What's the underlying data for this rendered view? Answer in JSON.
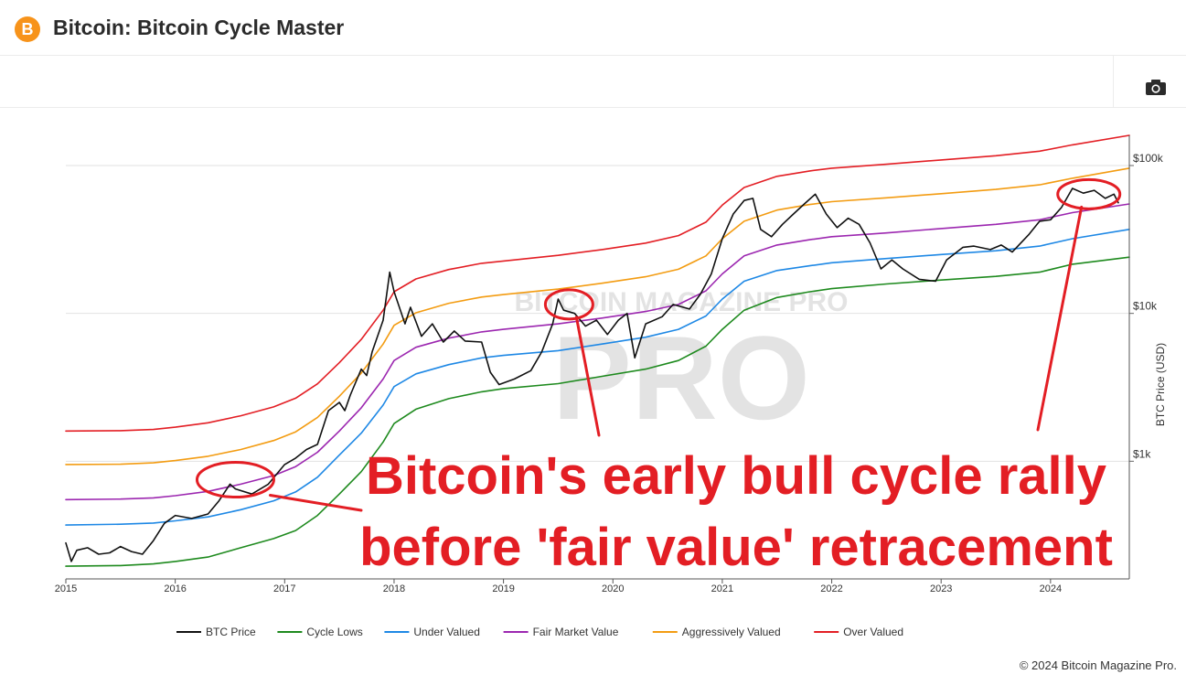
{
  "header": {
    "logo_glyph": "B",
    "title": "Bitcoin: Bitcoin Cycle Master"
  },
  "toolbar": {
    "camera_icon": "camera-icon"
  },
  "chart_data": {
    "type": "line",
    "y_scale": "log",
    "ylim": [
      160,
      160000
    ],
    "xlim": [
      2015,
      2024.72
    ],
    "ylabel": "BTC Price (USD)",
    "y_ticks": [
      {
        "value": 1000,
        "label": "$1k"
      },
      {
        "value": 10000,
        "label": "$10k"
      },
      {
        "value": 100000,
        "label": "$100k"
      }
    ],
    "x_ticks": [
      {
        "value": 2015,
        "label": "2015"
      },
      {
        "value": 2016,
        "label": "2016"
      },
      {
        "value": 2017,
        "label": "2017"
      },
      {
        "value": 2018,
        "label": "2018"
      },
      {
        "value": 2019,
        "label": "2019"
      },
      {
        "value": 2020,
        "label": "2020"
      },
      {
        "value": 2021,
        "label": "2021"
      },
      {
        "value": 2022,
        "label": "2022"
      },
      {
        "value": 2023,
        "label": "2023"
      },
      {
        "value": 2024,
        "label": "2024"
      }
    ],
    "grid": "horizontal",
    "legend_position": "bottom",
    "watermark": "BITCOIN MAGAZINE PRO",
    "annotation": {
      "lines": [
        "Bitcoin's early bull cycle rally",
        "before 'fair value' retracement"
      ],
      "color": "#e31e24",
      "highlights": [
        {
          "x": 2016.55,
          "y": 750
        },
        {
          "x": 2019.6,
          "y": 11500
        },
        {
          "x": 2024.35,
          "y": 64000
        }
      ]
    },
    "series": [
      {
        "name": "BTC Price",
        "color": "#111111",
        "width": 1.6,
        "points": [
          [
            2015.0,
            280
          ],
          [
            2015.05,
            210
          ],
          [
            2015.1,
            250
          ],
          [
            2015.2,
            260
          ],
          [
            2015.3,
            235
          ],
          [
            2015.4,
            240
          ],
          [
            2015.5,
            265
          ],
          [
            2015.6,
            245
          ],
          [
            2015.7,
            235
          ],
          [
            2015.8,
            290
          ],
          [
            2015.9,
            380
          ],
          [
            2016.0,
            430
          ],
          [
            2016.15,
            410
          ],
          [
            2016.3,
            440
          ],
          [
            2016.4,
            540
          ],
          [
            2016.5,
            700
          ],
          [
            2016.55,
            650
          ],
          [
            2016.7,
            600
          ],
          [
            2016.85,
            700
          ],
          [
            2017.0,
            950
          ],
          [
            2017.1,
            1050
          ],
          [
            2017.2,
            1200
          ],
          [
            2017.3,
            1300
          ],
          [
            2017.4,
            2200
          ],
          [
            2017.5,
            2500
          ],
          [
            2017.55,
            2200
          ],
          [
            2017.6,
            2800
          ],
          [
            2017.7,
            4200
          ],
          [
            2017.75,
            3800
          ],
          [
            2017.8,
            5500
          ],
          [
            2017.9,
            9000
          ],
          [
            2017.96,
            19000
          ],
          [
            2018.0,
            14000
          ],
          [
            2018.1,
            8500
          ],
          [
            2018.15,
            11000
          ],
          [
            2018.25,
            7000
          ],
          [
            2018.35,
            8500
          ],
          [
            2018.45,
            6400
          ],
          [
            2018.55,
            7600
          ],
          [
            2018.65,
            6500
          ],
          [
            2018.8,
            6400
          ],
          [
            2018.88,
            4000
          ],
          [
            2018.96,
            3300
          ],
          [
            2019.1,
            3600
          ],
          [
            2019.25,
            4100
          ],
          [
            2019.35,
            5500
          ],
          [
            2019.45,
            8500
          ],
          [
            2019.5,
            12500
          ],
          [
            2019.55,
            10500
          ],
          [
            2019.65,
            10000
          ],
          [
            2019.75,
            8200
          ],
          [
            2019.85,
            9000
          ],
          [
            2019.95,
            7200
          ],
          [
            2020.05,
            9000
          ],
          [
            2020.13,
            10000
          ],
          [
            2020.2,
            5000
          ],
          [
            2020.3,
            8500
          ],
          [
            2020.45,
            9500
          ],
          [
            2020.55,
            11500
          ],
          [
            2020.7,
            10700
          ],
          [
            2020.8,
            13500
          ],
          [
            2020.9,
            18500
          ],
          [
            2021.0,
            32000
          ],
          [
            2021.1,
            47000
          ],
          [
            2021.2,
            58000
          ],
          [
            2021.28,
            60000
          ],
          [
            2021.35,
            37000
          ],
          [
            2021.45,
            33000
          ],
          [
            2021.55,
            40000
          ],
          [
            2021.65,
            47000
          ],
          [
            2021.75,
            55000
          ],
          [
            2021.85,
            64000
          ],
          [
            2021.95,
            47000
          ],
          [
            2022.05,
            38000
          ],
          [
            2022.15,
            44000
          ],
          [
            2022.25,
            40000
          ],
          [
            2022.35,
            30000
          ],
          [
            2022.45,
            20000
          ],
          [
            2022.55,
            23000
          ],
          [
            2022.65,
            20000
          ],
          [
            2022.8,
            17000
          ],
          [
            2022.95,
            16500
          ],
          [
            2023.05,
            23000
          ],
          [
            2023.2,
            28000
          ],
          [
            2023.3,
            28500
          ],
          [
            2023.45,
            27000
          ],
          [
            2023.55,
            29000
          ],
          [
            2023.65,
            26000
          ],
          [
            2023.8,
            34000
          ],
          [
            2023.9,
            42000
          ],
          [
            2024.0,
            43000
          ],
          [
            2024.1,
            52000
          ],
          [
            2024.2,
            70000
          ],
          [
            2024.3,
            65000
          ],
          [
            2024.4,
            68000
          ],
          [
            2024.5,
            60000
          ],
          [
            2024.58,
            64000
          ],
          [
            2024.62,
            56000
          ]
        ]
      },
      {
        "name": "Cycle Lows",
        "color": "#1e8a1e",
        "width": 1.6,
        "points": [
          [
            2015.0,
            195
          ],
          [
            2015.5,
            197
          ],
          [
            2015.8,
            202
          ],
          [
            2016.0,
            210
          ],
          [
            2016.3,
            225
          ],
          [
            2016.6,
            260
          ],
          [
            2016.9,
            300
          ],
          [
            2017.1,
            340
          ],
          [
            2017.3,
            430
          ],
          [
            2017.5,
            600
          ],
          [
            2017.7,
            850
          ],
          [
            2017.9,
            1350
          ],
          [
            2018.0,
            1800
          ],
          [
            2018.2,
            2250
          ],
          [
            2018.5,
            2650
          ],
          [
            2018.8,
            2950
          ],
          [
            2019.0,
            3100
          ],
          [
            2019.5,
            3350
          ],
          [
            2019.9,
            3750
          ],
          [
            2020.3,
            4200
          ],
          [
            2020.6,
            4800
          ],
          [
            2020.85,
            6000
          ],
          [
            2021.0,
            7800
          ],
          [
            2021.2,
            10500
          ],
          [
            2021.5,
            12800
          ],
          [
            2021.8,
            14000
          ],
          [
            2022.0,
            14700
          ],
          [
            2022.5,
            15800
          ],
          [
            2023.0,
            16800
          ],
          [
            2023.5,
            17800
          ],
          [
            2023.9,
            19000
          ],
          [
            2024.2,
            21500
          ],
          [
            2024.72,
            24000
          ]
        ]
      },
      {
        "name": "Under Valued",
        "color": "#1e88e5",
        "width": 1.6,
        "points": [
          [
            2015.0,
            370
          ],
          [
            2015.5,
            375
          ],
          [
            2015.8,
            382
          ],
          [
            2016.0,
            395
          ],
          [
            2016.3,
            420
          ],
          [
            2016.6,
            470
          ],
          [
            2016.9,
            540
          ],
          [
            2017.1,
            620
          ],
          [
            2017.3,
            780
          ],
          [
            2017.5,
            1100
          ],
          [
            2017.7,
            1550
          ],
          [
            2017.9,
            2400
          ],
          [
            2018.0,
            3200
          ],
          [
            2018.2,
            3900
          ],
          [
            2018.5,
            4500
          ],
          [
            2018.8,
            5000
          ],
          [
            2019.0,
            5200
          ],
          [
            2019.5,
            5600
          ],
          [
            2019.9,
            6200
          ],
          [
            2020.3,
            6900
          ],
          [
            2020.6,
            7800
          ],
          [
            2020.85,
            9600
          ],
          [
            2021.0,
            12500
          ],
          [
            2021.2,
            16500
          ],
          [
            2021.5,
            19500
          ],
          [
            2021.8,
            21000
          ],
          [
            2022.0,
            22000
          ],
          [
            2022.5,
            23500
          ],
          [
            2023.0,
            25000
          ],
          [
            2023.5,
            26500
          ],
          [
            2023.9,
            28500
          ],
          [
            2024.2,
            32000
          ],
          [
            2024.72,
            37000
          ]
        ]
      },
      {
        "name": "Fair Market Value",
        "color": "#9c27b0",
        "width": 1.6,
        "points": [
          [
            2015.0,
            550
          ],
          [
            2015.5,
            555
          ],
          [
            2015.8,
            565
          ],
          [
            2016.0,
            585
          ],
          [
            2016.3,
            625
          ],
          [
            2016.6,
            700
          ],
          [
            2016.9,
            800
          ],
          [
            2017.1,
            920
          ],
          [
            2017.3,
            1150
          ],
          [
            2017.5,
            1600
          ],
          [
            2017.7,
            2300
          ],
          [
            2017.9,
            3600
          ],
          [
            2018.0,
            4800
          ],
          [
            2018.2,
            5900
          ],
          [
            2018.5,
            6800
          ],
          [
            2018.8,
            7500
          ],
          [
            2019.0,
            7800
          ],
          [
            2019.5,
            8500
          ],
          [
            2019.9,
            9300
          ],
          [
            2020.3,
            10300
          ],
          [
            2020.6,
            11500
          ],
          [
            2020.85,
            14200
          ],
          [
            2021.0,
            18500
          ],
          [
            2021.2,
            24500
          ],
          [
            2021.5,
            29000
          ],
          [
            2021.8,
            31500
          ],
          [
            2022.0,
            33000
          ],
          [
            2022.5,
            35000
          ],
          [
            2023.0,
            37500
          ],
          [
            2023.5,
            40000
          ],
          [
            2023.9,
            43000
          ],
          [
            2024.2,
            48000
          ],
          [
            2024.72,
            55000
          ]
        ]
      },
      {
        "name": "Aggressively Valued",
        "color": "#f39c12",
        "width": 1.6,
        "points": [
          [
            2015.0,
            950
          ],
          [
            2015.5,
            955
          ],
          [
            2015.8,
            975
          ],
          [
            2016.0,
            1010
          ],
          [
            2016.3,
            1080
          ],
          [
            2016.6,
            1200
          ],
          [
            2016.9,
            1380
          ],
          [
            2017.1,
            1580
          ],
          [
            2017.3,
            1980
          ],
          [
            2017.5,
            2750
          ],
          [
            2017.7,
            3950
          ],
          [
            2017.9,
            6200
          ],
          [
            2018.0,
            8300
          ],
          [
            2018.2,
            10100
          ],
          [
            2018.5,
            11700
          ],
          [
            2018.8,
            12900
          ],
          [
            2019.0,
            13400
          ],
          [
            2019.5,
            14600
          ],
          [
            2019.9,
            16000
          ],
          [
            2020.3,
            17700
          ],
          [
            2020.6,
            19900
          ],
          [
            2020.85,
            24500
          ],
          [
            2021.0,
            32000
          ],
          [
            2021.2,
            42000
          ],
          [
            2021.5,
            50000
          ],
          [
            2021.8,
            54500
          ],
          [
            2022.0,
            57000
          ],
          [
            2022.5,
            60500
          ],
          [
            2023.0,
            64500
          ],
          [
            2023.5,
            69000
          ],
          [
            2023.9,
            74000
          ],
          [
            2024.2,
            82000
          ],
          [
            2024.72,
            96000
          ]
        ]
      },
      {
        "name": "Over Valued",
        "color": "#e31e24",
        "width": 1.6,
        "points": [
          [
            2015.0,
            1600
          ],
          [
            2015.5,
            1610
          ],
          [
            2015.8,
            1640
          ],
          [
            2016.0,
            1700
          ],
          [
            2016.3,
            1820
          ],
          [
            2016.6,
            2030
          ],
          [
            2016.9,
            2330
          ],
          [
            2017.1,
            2670
          ],
          [
            2017.3,
            3340
          ],
          [
            2017.5,
            4640
          ],
          [
            2017.7,
            6670
          ],
          [
            2017.9,
            10500
          ],
          [
            2018.0,
            14000
          ],
          [
            2018.2,
            17100
          ],
          [
            2018.5,
            19800
          ],
          [
            2018.8,
            21800
          ],
          [
            2019.0,
            22600
          ],
          [
            2019.5,
            24700
          ],
          [
            2019.9,
            27000
          ],
          [
            2020.3,
            29900
          ],
          [
            2020.6,
            33600
          ],
          [
            2020.85,
            41400
          ],
          [
            2021.0,
            54000
          ],
          [
            2021.2,
            71000
          ],
          [
            2021.5,
            84500
          ],
          [
            2021.8,
            92000
          ],
          [
            2022.0,
            96000
          ],
          [
            2022.5,
            102000
          ],
          [
            2023.0,
            109000
          ],
          [
            2023.5,
            116500
          ],
          [
            2023.9,
            125000
          ],
          [
            2024.2,
            138000
          ],
          [
            2024.72,
            160000
          ]
        ]
      }
    ]
  },
  "copyright": "© 2024 Bitcoin Magazine Pro."
}
